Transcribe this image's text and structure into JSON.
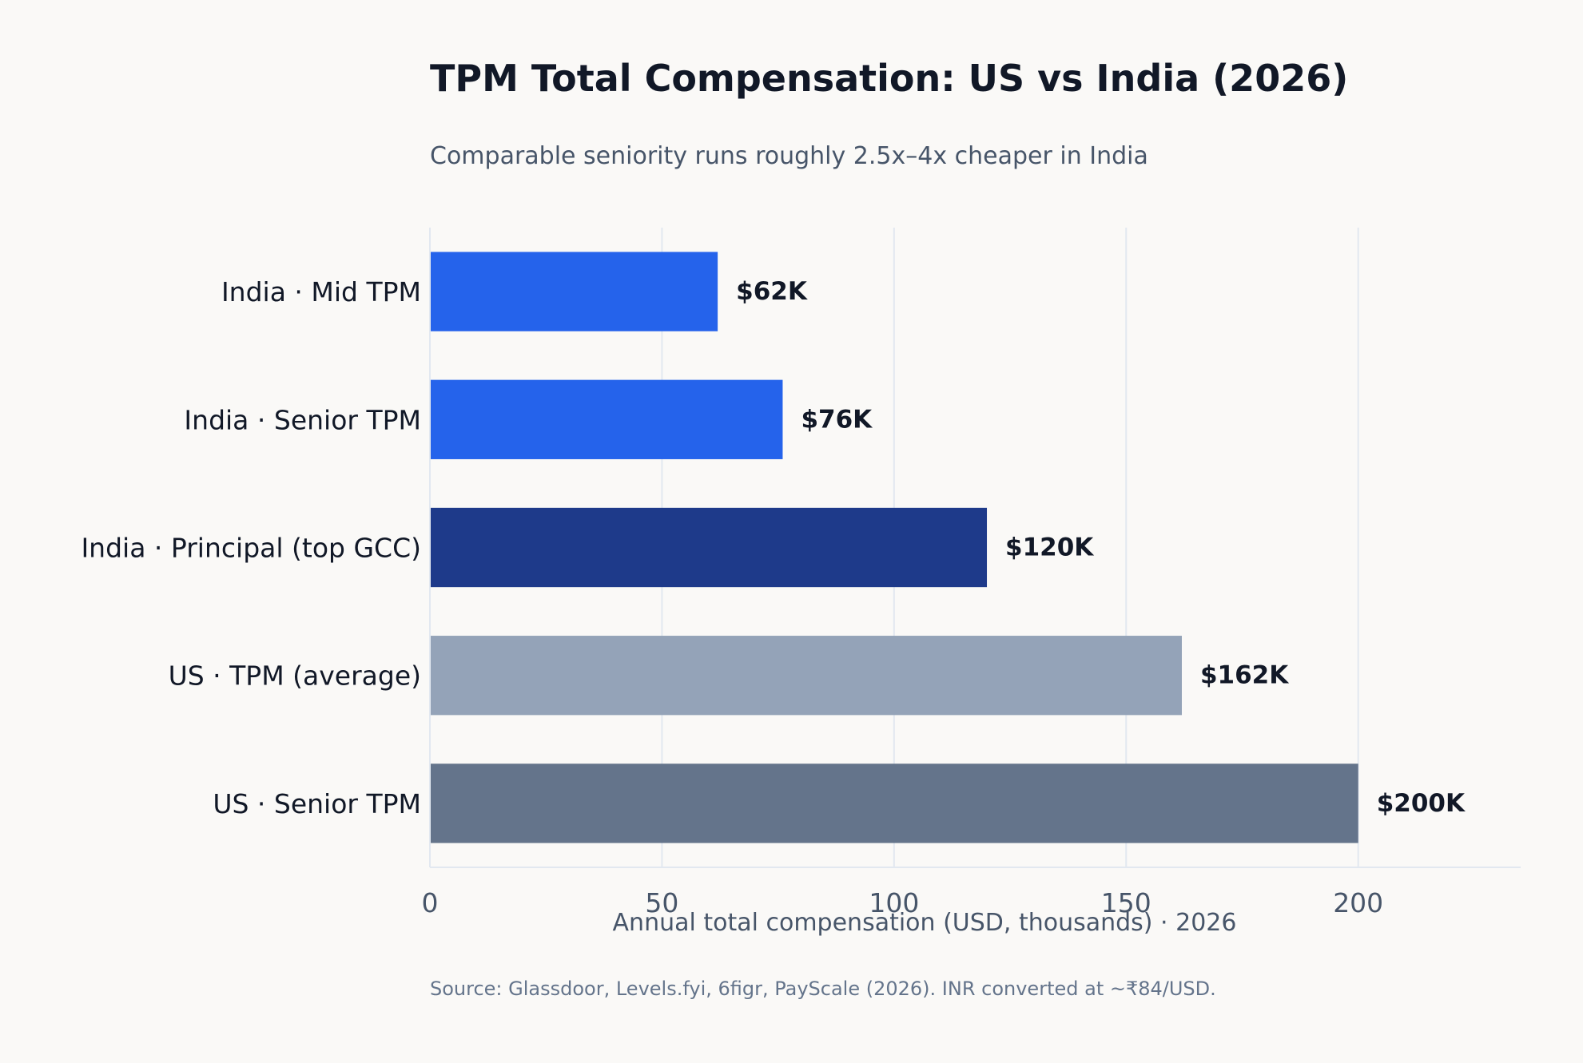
{
  "chart_data": {
    "type": "bar",
    "orientation": "horizontal",
    "title": "TPM Total Compensation: US vs India (2026)",
    "subtitle": "Comparable seniority runs roughly 2.5x–4x cheaper in India",
    "categories": [
      "India · Mid TPM",
      "India · Senior TPM",
      "India · Principal (top GCC)",
      "US · TPM (average)",
      "US · Senior TPM"
    ],
    "values": [
      62,
      76,
      120,
      162,
      200
    ],
    "value_labels": [
      "$62K",
      "$76K",
      "$120K",
      "$162K",
      "$200K"
    ],
    "bar_colors": [
      "#2563eb",
      "#2563eb",
      "#1e3a8a",
      "#94a3b8",
      "#64748b"
    ],
    "xlabel": "Annual total compensation (USD, thousands) · 2026",
    "ylabel": "",
    "xlim": [
      0,
      235
    ],
    "xticks": [
      0,
      50,
      100,
      150,
      200
    ],
    "grid": true,
    "legend": "none",
    "source": "Source: Glassdoor, Levels.fyi, 6figr, PayScale (2026). INR converted at ~₹84/USD."
  },
  "colors": {
    "background": "#faf9f7",
    "title": "#111827",
    "muted_text": "#475569",
    "gridline": "#e2e8f0"
  }
}
